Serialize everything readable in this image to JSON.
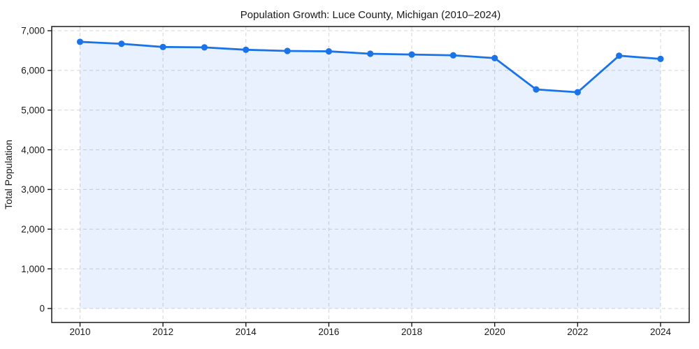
{
  "chart_data": {
    "type": "line",
    "title": "Population Growth: Luce County, Michigan (2010–2024)",
    "xlabel": "",
    "ylabel": "Total Population",
    "x": [
      2010,
      2011,
      2012,
      2013,
      2014,
      2015,
      2016,
      2017,
      2018,
      2019,
      2020,
      2021,
      2022,
      2023,
      2024
    ],
    "series": [
      {
        "name": "Total Population",
        "values": [
          6720,
          6670,
          6590,
          6580,
          6520,
          6490,
          6480,
          6420,
          6400,
          6380,
          6310,
          5520,
          5450,
          6370,
          6290
        ]
      }
    ],
    "ylim": [
      0,
      7000
    ],
    "yticks": [
      0,
      1000,
      2000,
      3000,
      4000,
      5000,
      6000,
      7000
    ],
    "ytick_labels": [
      "0",
      "1,000",
      "2,000",
      "3,000",
      "4,000",
      "5,000",
      "6,000",
      "7,000"
    ],
    "xticks": [
      2010,
      2012,
      2014,
      2016,
      2018,
      2020,
      2022,
      2024
    ],
    "grid": true,
    "grid_style": "dashed",
    "legend": "none",
    "marker": "circle",
    "area_fill": true,
    "colors": {
      "line": "#1a73e8",
      "fill": "rgba(26,115,232,0.10)",
      "grid": "#d4d4d4",
      "axis": "#1a1a1a",
      "text": "#1a1a1a",
      "background": "#ffffff"
    }
  }
}
